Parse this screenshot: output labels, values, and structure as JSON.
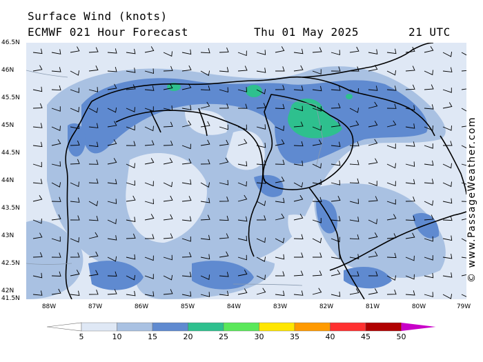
{
  "header": {
    "title": "Surface Wind (knots)",
    "model": "ECMWF 021 Hour Forecast",
    "date": "Thu 01 May 2025",
    "time": "21 UTC"
  },
  "axes": {
    "lat_labels": [
      "46.5N",
      "46N",
      "45.5N",
      "45N",
      "44.5N",
      "44N",
      "43.5N",
      "43N",
      "42.5N",
      "42N",
      "41.5N"
    ],
    "lon_labels": [
      "88W",
      "87W",
      "86W",
      "85W",
      "84W",
      "83W",
      "82W",
      "81W",
      "80W",
      "79W"
    ]
  },
  "credit": "© www.PassageWeather.com",
  "legend": {
    "labels": [
      "5",
      "10",
      "15",
      "20",
      "25",
      "30",
      "35",
      "40",
      "45",
      "50"
    ],
    "colors": [
      "#dfe8f5",
      "#a9c1e2",
      "#5f8ad0",
      "#2ec08e",
      "#5ae85a",
      "#ffe600",
      "#ff9a00",
      "#ff3030",
      "#b00000",
      "#c800c8"
    ]
  },
  "map_colors": {
    "calm": "#dfe8f5",
    "light": "#a9c1e2",
    "moderate": "#5f8ad0",
    "fresh": "#2ec08e"
  }
}
